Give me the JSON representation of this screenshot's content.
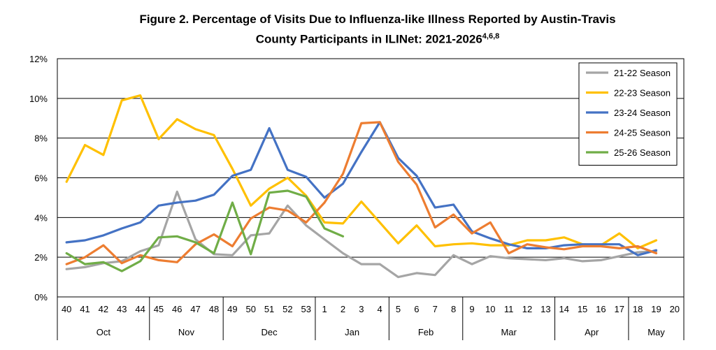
{
  "title": {
    "line1": "Figure 2. Percentage of Visits Due to Influenza-like Illness Reported by Austin-Travis",
    "line2": "County Participants in ILINet: 2021-2026",
    "superscript": "4,6,8"
  },
  "chart_data": {
    "type": "line",
    "title": "Figure 2. Percentage of Visits Due to Influenza-like Illness Reported by Austin-Travis County Participants in ILINet: 2021-2026",
    "xlabel": "",
    "ylabel": "",
    "ylim": [
      0,
      12
    ],
    "yticks": [
      "0%",
      "2%",
      "4%",
      "6%",
      "8%",
      "10%",
      "12%"
    ],
    "grid": "horizontal",
    "legend_position": "top-right",
    "categories": [
      "40",
      "41",
      "42",
      "43",
      "44",
      "45",
      "46",
      "47",
      "48",
      "49",
      "50",
      "51",
      "52",
      "53",
      "1",
      "2",
      "3",
      "4",
      "5",
      "6",
      "7",
      "8",
      "9",
      "10",
      "11",
      "12",
      "13",
      "14",
      "15",
      "16",
      "17",
      "18",
      "19",
      "20"
    ],
    "months": [
      {
        "label": "Oct",
        "weeks": 5
      },
      {
        "label": "Nov",
        "weeks": 4
      },
      {
        "label": "Dec",
        "weeks": 5
      },
      {
        "label": "Jan",
        "weeks": 4
      },
      {
        "label": "Feb",
        "weeks": 4
      },
      {
        "label": "Mar",
        "weeks": 5
      },
      {
        "label": "Apr",
        "weeks": 4
      },
      {
        "label": "May",
        "weeks": 3
      }
    ],
    "series": [
      {
        "name": "21-22 Season",
        "color": "#a5a5a5",
        "values": [
          1.4,
          1.5,
          1.7,
          1.8,
          2.3,
          2.6,
          5.3,
          2.9,
          2.15,
          2.1,
          3.1,
          3.2,
          4.6,
          3.6,
          2.9,
          2.2,
          1.65,
          1.65,
          1.0,
          1.2,
          1.1,
          2.1,
          1.65,
          2.05,
          1.95,
          1.9,
          1.85,
          1.95,
          1.8,
          1.85,
          2.05,
          2.25,
          2.3,
          null
        ]
      },
      {
        "name": "22-23 Season",
        "color": "#ffc000",
        "values": [
          5.8,
          7.65,
          7.15,
          9.9,
          10.15,
          7.95,
          8.95,
          8.45,
          8.15,
          6.45,
          4.6,
          5.45,
          6.0,
          5.1,
          3.75,
          3.7,
          4.8,
          3.75,
          2.7,
          3.6,
          2.55,
          2.65,
          2.7,
          2.6,
          2.6,
          2.85,
          2.85,
          3.0,
          2.65,
          2.6,
          3.2,
          2.45,
          2.85,
          null
        ]
      },
      {
        "name": "23-24 Season",
        "color": "#4472c4",
        "values": [
          2.75,
          2.85,
          3.1,
          3.45,
          3.75,
          4.6,
          4.75,
          4.85,
          5.15,
          6.1,
          6.4,
          8.5,
          6.4,
          6.05,
          5.0,
          5.7,
          7.3,
          8.8,
          7.0,
          6.1,
          4.5,
          4.65,
          3.3,
          2.95,
          2.65,
          2.45,
          2.45,
          2.6,
          2.65,
          2.65,
          2.65,
          2.1,
          2.35,
          null
        ]
      },
      {
        "name": "24-25 Season",
        "color": "#ed7d31",
        "values": [
          1.65,
          2.0,
          2.6,
          1.7,
          2.1,
          1.85,
          1.75,
          2.65,
          3.15,
          2.55,
          3.95,
          4.5,
          4.35,
          3.75,
          4.75,
          6.2,
          8.75,
          8.8,
          6.8,
          5.65,
          3.5,
          4.15,
          3.2,
          3.75,
          2.2,
          2.65,
          2.5,
          2.4,
          2.55,
          2.55,
          2.45,
          2.55,
          2.2,
          null
        ]
      },
      {
        "name": "25-26 Season",
        "color": "#70ad47",
        "values": [
          2.2,
          1.65,
          1.75,
          1.3,
          1.8,
          3.0,
          3.05,
          2.75,
          2.2,
          4.75,
          2.15,
          5.25,
          5.35,
          5.05,
          3.45,
          3.05,
          null,
          null,
          null,
          null,
          null,
          null,
          null,
          null,
          null,
          null,
          null,
          null,
          null,
          null,
          null,
          null,
          null,
          null
        ]
      }
    ]
  }
}
